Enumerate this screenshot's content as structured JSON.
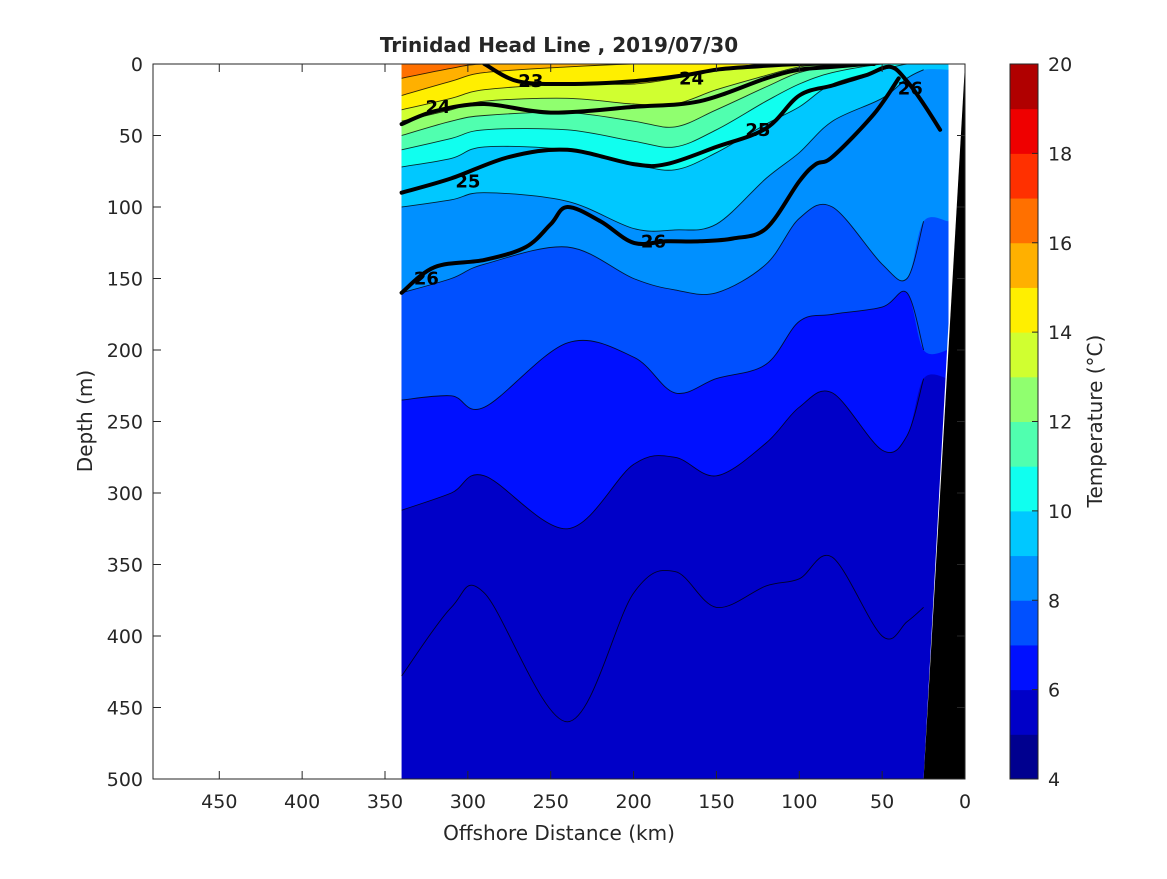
{
  "chart_data": {
    "type": "heatmap",
    "subtype": "filled-contour section",
    "title": "Trinidad Head Line , 2019/07/30",
    "xlabel": "Offshore Distance (km)",
    "ylabel": "Depth (m)",
    "xlim": [
      490,
      0
    ],
    "x_reversed": true,
    "ylim": [
      500,
      0
    ],
    "y_reversed": true,
    "x_ticks": [
      450,
      400,
      350,
      300,
      250,
      200,
      150,
      100,
      50,
      0
    ],
    "y_ticks": [
      0,
      50,
      100,
      150,
      200,
      250,
      300,
      350,
      400,
      450,
      500
    ],
    "colorbar": {
      "label": "Temperature (°C)",
      "range": [
        4,
        20
      ],
      "ticks": [
        4,
        6,
        8,
        10,
        12,
        14,
        16,
        18,
        20
      ],
      "levels": [
        4,
        5,
        6,
        7,
        8,
        9,
        10,
        11,
        12,
        13,
        14,
        15,
        16,
        17,
        18,
        19,
        20
      ],
      "colormap": "jet",
      "colors": [
        "#00008f",
        "#0000c8",
        "#0010ff",
        "#0050ff",
        "#0090ff",
        "#00c8ff",
        "#10ffef",
        "#50ffaf",
        "#90ff6f",
        "#d0ff30",
        "#ffef00",
        "#ffb000",
        "#ff7000",
        "#ff3000",
        "#ef0000",
        "#b00000"
      ]
    },
    "isotherm_bands": [
      {
        "temp_lower": 17,
        "depth": [
          0,
          0,
          0,
          0,
          0,
          0,
          0,
          0,
          0,
          0,
          0,
          0,
          0
        ]
      },
      {
        "temp_lower": 16,
        "depth": [
          10,
          3,
          0,
          0,
          0,
          0,
          0,
          0,
          0,
          0,
          0,
          0,
          0
        ]
      },
      {
        "temp_lower": 15,
        "depth": [
          22,
          12,
          6,
          2,
          0,
          0,
          0,
          0,
          0,
          0,
          0,
          0,
          0
        ]
      },
      {
        "temp_lower": 14,
        "depth": [
          32,
          24,
          18,
          14,
          14,
          10,
          4,
          0,
          0,
          0,
          0,
          0,
          0
        ]
      },
      {
        "temp_lower": 13,
        "depth": [
          40,
          32,
          26,
          24,
          28,
          28,
          18,
          8,
          2,
          0,
          0,
          0,
          0
        ]
      },
      {
        "temp_lower": 12,
        "depth": [
          50,
          40,
          36,
          34,
          40,
          44,
          32,
          16,
          6,
          2,
          0,
          0,
          0
        ]
      },
      {
        "temp_lower": 11,
        "depth": [
          60,
          52,
          46,
          46,
          54,
          58,
          46,
          26,
          14,
          6,
          0,
          0,
          0
        ]
      },
      {
        "temp_lower": 10,
        "depth": [
          72,
          66,
          58,
          60,
          70,
          74,
          62,
          42,
          30,
          14,
          4,
          0,
          0
        ]
      },
      {
        "temp_lower": 9,
        "depth": [
          100,
          95,
          90,
          96,
          115,
          116,
          112,
          80,
          62,
          40,
          24,
          10,
          4
        ]
      },
      {
        "temp_lower": 8,
        "depth": [
          160,
          150,
          140,
          128,
          150,
          158,
          160,
          140,
          108,
          100,
          140,
          150,
          110
        ]
      },
      {
        "temp_lower": 7,
        "depth": [
          235,
          232,
          240,
          195,
          205,
          230,
          220,
          210,
          180,
          175,
          170,
          160,
          200
        ]
      },
      {
        "temp_lower": 6,
        "depth": [
          312,
          300,
          288,
          325,
          280,
          275,
          288,
          265,
          240,
          230,
          270,
          260,
          220
        ]
      },
      {
        "temp_lower": 5,
        "depth": [
          428,
          380,
          370,
          460,
          370,
          355,
          380,
          365,
          360,
          345,
          400,
          390,
          380
        ]
      }
    ],
    "isotherm_x": [
      340,
      310,
      290,
      240,
      200,
      175,
      150,
      120,
      100,
      80,
      50,
      35,
      25
    ],
    "density_contours": [
      {
        "label": "23",
        "x": [
          290,
          270,
          240,
          200,
          170,
          150,
          130,
          100,
          80,
          70,
          60
        ],
        "depth": [
          0,
          12,
          14,
          12,
          8,
          4,
          2,
          0,
          0,
          0,
          0
        ]
      },
      {
        "label": "24",
        "x": [
          340,
          320,
          290,
          250,
          200,
          160,
          120,
          100,
          80,
          60,
          55
        ],
        "depth": [
          42,
          33,
          28,
          34,
          30,
          26,
          10,
          4,
          2,
          0,
          0
        ]
      },
      {
        "label": "25",
        "x": [
          340,
          310,
          275,
          240,
          200,
          180,
          150,
          120,
          100,
          80,
          60,
          45,
          35,
          25,
          15
        ],
        "depth": [
          90,
          80,
          65,
          60,
          70,
          70,
          58,
          45,
          22,
          15,
          8,
          2,
          12,
          28,
          46
        ]
      },
      {
        "label": "26",
        "x": [
          340,
          320,
          290,
          265,
          250,
          240,
          220,
          200,
          180,
          160,
          140,
          120,
          100,
          90,
          80,
          55,
          40
        ],
        "depth": [
          160,
          142,
          137,
          128,
          112,
          100,
          110,
          125,
          124,
          124,
          122,
          115,
          82,
          70,
          65,
          35,
          10
        ]
      }
    ],
    "contour_labels": [
      {
        "text": "23",
        "x": 262,
        "depth": 12
      },
      {
        "text": "24",
        "x": 165,
        "depth": 10
      },
      {
        "text": "24",
        "x": 318,
        "depth": 30
      },
      {
        "text": "25",
        "x": 125,
        "depth": 46
      },
      {
        "text": "25",
        "x": 300,
        "depth": 82
      },
      {
        "text": "26",
        "x": 33,
        "depth": 17
      },
      {
        "text": "26",
        "x": 188,
        "depth": 124
      },
      {
        "text": "26",
        "x": 325,
        "depth": 150
      }
    ],
    "data_extent_x": [
      340,
      10
    ],
    "bottom_topography": {
      "x": [
        10,
        8,
        25
      ],
      "depth": [
        0,
        500,
        500
      ]
    }
  }
}
